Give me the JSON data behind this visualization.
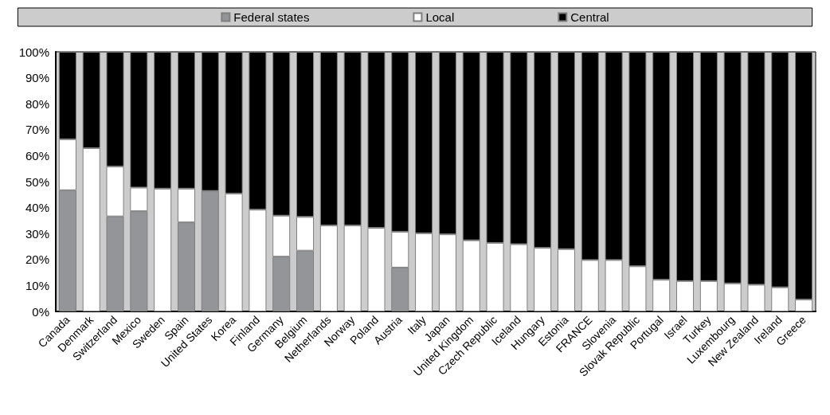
{
  "chart_data": {
    "type": "bar",
    "stacked": true,
    "legend": "top",
    "grid": false,
    "categories": [
      "Canada",
      "Denmark",
      "Switzerland",
      "Mexico",
      "Sweden",
      "Spain",
      "United States",
      "Korea",
      "Finland",
      "Germany",
      "Belgium",
      "Netherlands",
      "Norway",
      "Poland",
      "Austria",
      "Italy",
      "Japan",
      "United Kingdom",
      "Czech Republic",
      "Iceland",
      "Hungary",
      "Estonia",
      "FRANCE",
      "Slovenia",
      "Slovak Republic",
      "Portugal",
      "Israel",
      "Turkey",
      "Luxembourg",
      "New Zealand",
      "Ireland",
      "Greece"
    ],
    "series": [
      {
        "name": "Federal states",
        "color": "#939598",
        "values": [
          46.7,
          0,
          36.6,
          38.6,
          0,
          34.3,
          46.4,
          0,
          0,
          21.1,
          23.4,
          0,
          0,
          0,
          16.9,
          0,
          0,
          0,
          0,
          0,
          0,
          0,
          0,
          0,
          0,
          0,
          0,
          0,
          0,
          0,
          0,
          0
        ]
      },
      {
        "name": "Local",
        "color": "#ffffff",
        "values": [
          19.6,
          62.9,
          19.2,
          9.1,
          47.3,
          13,
          null,
          45.4,
          39.2,
          15.8,
          13,
          33.1,
          33.1,
          32.2,
          13.8,
          30.1,
          29.7,
          27.4,
          26.4,
          25.9,
          24.5,
          24,
          19.8,
          19.8,
          17.4,
          12.2,
          11.7,
          11.7,
          10.8,
          10.3,
          9.3,
          4.6
        ]
      },
      {
        "name": "Central",
        "color": "#000000",
        "values": [
          33.7,
          37.1,
          44.2,
          52.3,
          52.7,
          52.7,
          53.6,
          54.6,
          60.8,
          63.1,
          63.6,
          66.9,
          66.9,
          67.8,
          69.3,
          69.9,
          70.3,
          72.6,
          73.6,
          74.1,
          75.5,
          76,
          80.2,
          80.2,
          82.6,
          87.8,
          88.3,
          88.3,
          89.2,
          89.7,
          90.7,
          95.4
        ]
      }
    ],
    "ylim": [
      0,
      100
    ],
    "yticks": [
      {
        "value": 0,
        "label": "0%"
      },
      {
        "value": 10,
        "label": "10%"
      },
      {
        "value": 20,
        "label": "20%"
      },
      {
        "value": 30,
        "label": "30%"
      },
      {
        "value": 40,
        "label": "40%"
      },
      {
        "value": 50,
        "label": "50%"
      },
      {
        "value": 60,
        "label": "60%"
      },
      {
        "value": 70,
        "label": "70%"
      },
      {
        "value": 80,
        "label": "80%"
      },
      {
        "value": 90,
        "label": "90%"
      },
      {
        "value": 100,
        "label": "100%"
      }
    ]
  }
}
